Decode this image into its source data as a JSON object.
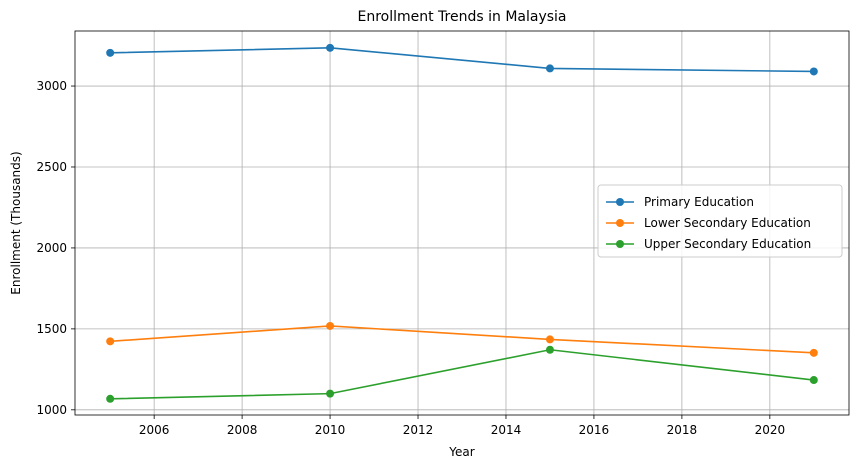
{
  "chart_data": {
    "type": "line",
    "title": "Enrollment Trends in Malaysia",
    "xlabel": "Year",
    "ylabel": "Enrollment (Thousands)",
    "x": [
      2005,
      2010,
      2015,
      2021
    ],
    "xlim": [
      2004.2,
      2021.8
    ],
    "ylim": [
      968,
      3340
    ],
    "xticks": [
      2006,
      2008,
      2010,
      2012,
      2014,
      2016,
      2018,
      2020
    ],
    "yticks": [
      1000,
      1500,
      2000,
      2500,
      3000
    ],
    "grid": true,
    "legend_position": "center-right",
    "series": [
      {
        "name": "Primary Education",
        "color": "#1f77b4",
        "values": [
          3205,
          3236,
          3109,
          3090
        ]
      },
      {
        "name": "Lower Secondary Education",
        "color": "#ff7f0e",
        "values": [
          1423,
          1518,
          1435,
          1352
        ]
      },
      {
        "name": "Upper Secondary Education",
        "color": "#2ca02c",
        "values": [
          1068,
          1100,
          1371,
          1184
        ]
      }
    ]
  }
}
